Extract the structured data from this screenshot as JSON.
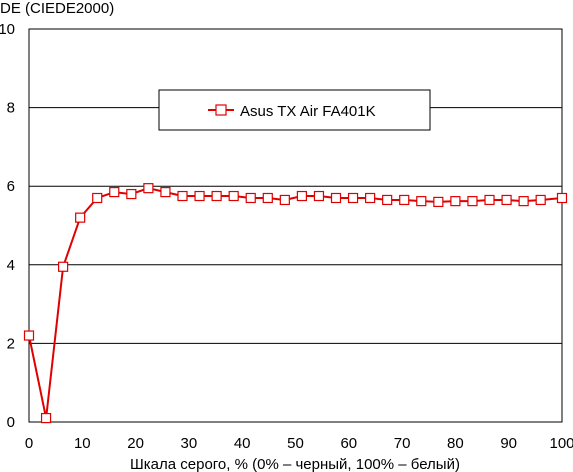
{
  "chart_data": {
    "type": "line",
    "ylabel": "DE (CIEDE2000)",
    "xlabel": "Шкала серого, % (0% – черный, 100% – белый)",
    "xlim": [
      0,
      100
    ],
    "ylim": [
      0,
      10
    ],
    "x_ticks": [
      "0",
      "10",
      "20",
      "30",
      "40",
      "50",
      "60",
      "70",
      "80",
      "90",
      "100"
    ],
    "y_ticks": [
      "0",
      "2",
      "4",
      "6",
      "8",
      "10"
    ],
    "grid": "horizontal",
    "legend_position": "top-center",
    "series": [
      {
        "name": "Asus TX Air FA401K",
        "color": "#e00000",
        "marker": "open-square",
        "x": [
          0,
          3.2,
          6.4,
          9.6,
          12.8,
          16,
          19.2,
          22.4,
          25.6,
          28.8,
          32,
          35.2,
          38.4,
          41.6,
          44.8,
          48,
          51.2,
          54.4,
          57.6,
          60.8,
          64,
          67.2,
          70.4,
          73.6,
          76.8,
          80,
          83.2,
          86.4,
          89.6,
          92.8,
          96,
          100
        ],
        "values": [
          2.2,
          0.1,
          3.95,
          5.2,
          5.7,
          5.85,
          5.8,
          5.95,
          5.85,
          5.75,
          5.75,
          5.75,
          5.75,
          5.7,
          5.7,
          5.65,
          5.75,
          5.75,
          5.7,
          5.7,
          5.7,
          5.65,
          5.65,
          5.62,
          5.6,
          5.62,
          5.62,
          5.65,
          5.65,
          5.62,
          5.65,
          5.7
        ]
      }
    ]
  }
}
